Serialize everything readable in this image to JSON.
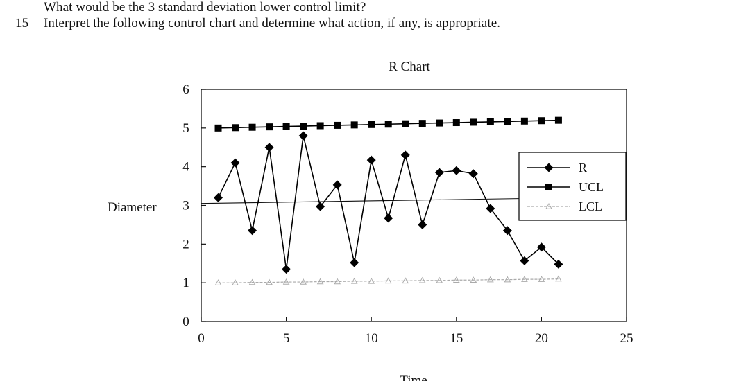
{
  "question_prev": "What would be the 3 standard deviation lower control limit?",
  "question_number": "15",
  "question_text": "Interpret the following control chart and determine what action, if any, is appropriate.",
  "chart_data": {
    "type": "line",
    "title": "R Chart",
    "xlabel": "Time",
    "ylabel": "Diameter",
    "xlim": [
      0,
      25
    ],
    "ylim": [
      0,
      6
    ],
    "xticks": [
      0,
      5,
      10,
      15,
      20,
      25
    ],
    "yticks": [
      0,
      1,
      2,
      3,
      4,
      5,
      6
    ],
    "x": [
      1,
      2,
      3,
      4,
      5,
      6,
      7,
      8,
      9,
      10,
      11,
      12,
      13,
      14,
      15,
      16,
      17,
      18,
      19,
      20,
      21
    ],
    "series": [
      {
        "name": "R",
        "marker": "diamond",
        "color": "#000000",
        "values": [
          3.2,
          4.1,
          2.35,
          4.5,
          1.35,
          4.8,
          2.97,
          3.53,
          1.52,
          4.17,
          2.67,
          4.3,
          2.5,
          3.85,
          3.9,
          3.82,
          2.92,
          2.35,
          1.57,
          1.92,
          1.48
        ]
      },
      {
        "name": "UCL",
        "marker": "square",
        "color": "#000000",
        "values": [
          5.0,
          5.01,
          5.02,
          5.03,
          5.04,
          5.05,
          5.06,
          5.07,
          5.08,
          5.09,
          5.1,
          5.11,
          5.12,
          5.13,
          5.14,
          5.15,
          5.16,
          5.17,
          5.18,
          5.19,
          5.2
        ]
      },
      {
        "name": "LCL",
        "marker": "triangle",
        "color": "#aaaaaa",
        "values": [
          1.0,
          1.0,
          1.01,
          1.01,
          1.02,
          1.02,
          1.03,
          1.03,
          1.04,
          1.04,
          1.05,
          1.05,
          1.06,
          1.06,
          1.07,
          1.07,
          1.08,
          1.08,
          1.09,
          1.09,
          1.1
        ]
      }
    ],
    "center_line": {
      "x_start": 0,
      "y_start": 3.05,
      "x_end": 25,
      "y_end": 3.22
    },
    "legend": {
      "position": "right",
      "entries": [
        "R",
        "UCL",
        "LCL"
      ]
    },
    "grid": false
  }
}
